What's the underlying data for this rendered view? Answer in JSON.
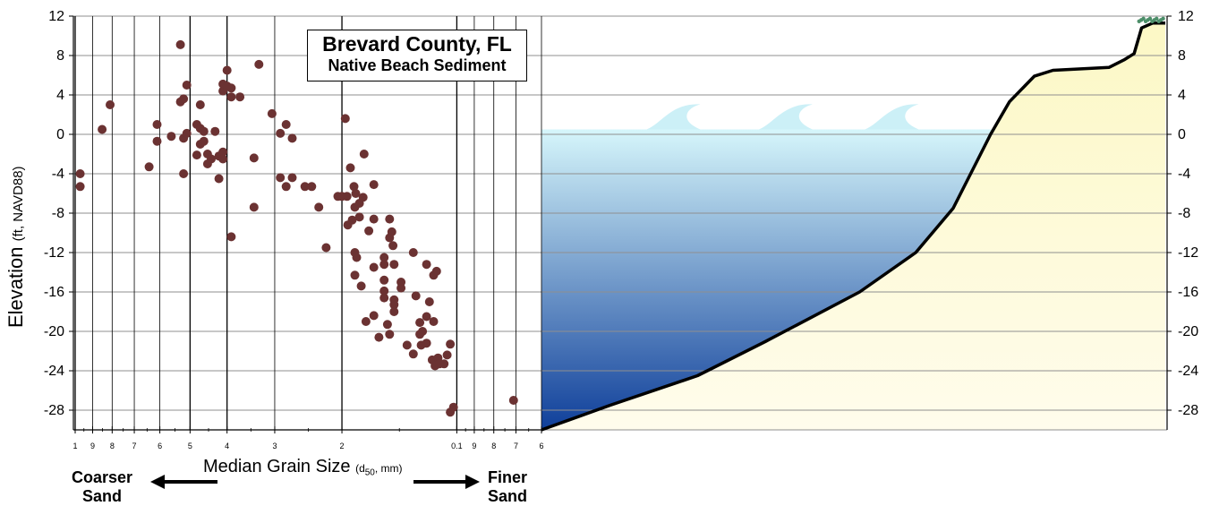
{
  "title": {
    "main": "Brevard County, FL",
    "sub": "Native Beach Sediment"
  },
  "axes": {
    "y_label_main": "Elevation ",
    "y_label_unit": "(ft, NAVD88)",
    "x_label_main": "Median Grain Size ",
    "x_label_unit_pre": "(d",
    "x_label_unit_sub": "50",
    "x_label_unit_post": ", mm)",
    "left_direction": [
      "Coarser",
      "Sand"
    ],
    "right_direction": [
      "Finer",
      "Sand"
    ]
  },
  "chart_data": {
    "type": "scatter",
    "title": "Brevard County, FL",
    "subtitle": "Native Beach Sediment",
    "xlabel": "Median Grain Size (d50, mm)",
    "ylabel": "Elevation (ft, NAVD88)",
    "x_scale": "log, reversed",
    "xlim": [
      1.0,
      0.06
    ],
    "ylim": [
      -30,
      12
    ],
    "y_ticks": [
      12,
      8,
      4,
      0,
      -4,
      -8,
      -12,
      -16,
      -20,
      -24,
      -28
    ],
    "x_ticks": [
      1,
      0.9,
      0.8,
      0.7,
      0.6,
      0.5,
      0.4,
      0.3,
      0.2,
      0.1,
      0.09,
      0.08,
      0.07,
      0.06
    ],
    "x_tick_labels": [
      "1",
      "9",
      "8",
      "7",
      "6",
      "5",
      "4",
      "3",
      "2",
      "0.1",
      "9",
      "8",
      "7",
      "6"
    ],
    "marker_color": "#6b3232",
    "points": [
      {
        "x": 0.97,
        "y": -4.0
      },
      {
        "x": 0.97,
        "y": -5.3
      },
      {
        "x": 0.85,
        "y": 0.5
      },
      {
        "x": 0.81,
        "y": 3.0
      },
      {
        "x": 0.64,
        "y": -3.3
      },
      {
        "x": 0.61,
        "y": 1.0
      },
      {
        "x": 0.61,
        "y": -0.7
      },
      {
        "x": 0.56,
        "y": -0.2
      },
      {
        "x": 0.53,
        "y": 9.1
      },
      {
        "x": 0.53,
        "y": 3.3
      },
      {
        "x": 0.52,
        "y": 3.6
      },
      {
        "x": 0.52,
        "y": -0.4
      },
      {
        "x": 0.52,
        "y": -4.0
      },
      {
        "x": 0.51,
        "y": 5.0
      },
      {
        "x": 0.51,
        "y": 0.1
      },
      {
        "x": 0.48,
        "y": 1.0
      },
      {
        "x": 0.48,
        "y": -2.1
      },
      {
        "x": 0.47,
        "y": 0.6
      },
      {
        "x": 0.47,
        "y": 3.0
      },
      {
        "x": 0.47,
        "y": -1.0
      },
      {
        "x": 0.46,
        "y": -0.7
      },
      {
        "x": 0.46,
        "y": 0.3
      },
      {
        "x": 0.45,
        "y": -2.0
      },
      {
        "x": 0.45,
        "y": -3.0
      },
      {
        "x": 0.44,
        "y": -2.5
      },
      {
        "x": 0.43,
        "y": 0.3
      },
      {
        "x": 0.42,
        "y": -4.5
      },
      {
        "x": 0.42,
        "y": -2.2
      },
      {
        "x": 0.41,
        "y": 4.4
      },
      {
        "x": 0.41,
        "y": 5.1
      },
      {
        "x": 0.41,
        "y": -1.8
      },
      {
        "x": 0.41,
        "y": -2.5
      },
      {
        "x": 0.4,
        "y": 6.5
      },
      {
        "x": 0.4,
        "y": 4.9
      },
      {
        "x": 0.39,
        "y": 4.7
      },
      {
        "x": 0.39,
        "y": 3.8
      },
      {
        "x": 0.39,
        "y": -10.4
      },
      {
        "x": 0.37,
        "y": 3.8
      },
      {
        "x": 0.34,
        "y": -2.4
      },
      {
        "x": 0.34,
        "y": -7.4
      },
      {
        "x": 0.33,
        "y": 7.1
      },
      {
        "x": 0.305,
        "y": 2.1
      },
      {
        "x": 0.29,
        "y": 0.1
      },
      {
        "x": 0.29,
        "y": -4.4
      },
      {
        "x": 0.28,
        "y": 1.0
      },
      {
        "x": 0.28,
        "y": -5.3
      },
      {
        "x": 0.27,
        "y": -0.4
      },
      {
        "x": 0.27,
        "y": -4.4
      },
      {
        "x": 0.25,
        "y": -5.3
      },
      {
        "x": 0.24,
        "y": -5.3
      },
      {
        "x": 0.23,
        "y": -7.4
      },
      {
        "x": 0.22,
        "y": -11.5
      },
      {
        "x": 0.205,
        "y": -6.3
      },
      {
        "x": 0.2,
        "y": -6.3
      },
      {
        "x": 0.196,
        "y": 1.6
      },
      {
        "x": 0.194,
        "y": -6.3
      },
      {
        "x": 0.193,
        "y": -9.2
      },
      {
        "x": 0.19,
        "y": -3.4
      },
      {
        "x": 0.188,
        "y": -8.7
      },
      {
        "x": 0.186,
        "y": -5.3
      },
      {
        "x": 0.185,
        "y": -7.4
      },
      {
        "x": 0.185,
        "y": -12.0
      },
      {
        "x": 0.185,
        "y": -14.3
      },
      {
        "x": 0.184,
        "y": -6.0
      },
      {
        "x": 0.183,
        "y": -12.5
      },
      {
        "x": 0.18,
        "y": -7.0
      },
      {
        "x": 0.18,
        "y": -8.4
      },
      {
        "x": 0.178,
        "y": -15.4
      },
      {
        "x": 0.176,
        "y": -6.4
      },
      {
        "x": 0.175,
        "y": -2.0
      },
      {
        "x": 0.173,
        "y": -19.0
      },
      {
        "x": 0.17,
        "y": -9.8
      },
      {
        "x": 0.165,
        "y": -5.1
      },
      {
        "x": 0.165,
        "y": -13.5
      },
      {
        "x": 0.165,
        "y": -18.4
      },
      {
        "x": 0.165,
        "y": -8.6
      },
      {
        "x": 0.16,
        "y": -20.6
      },
      {
        "x": 0.155,
        "y": -12.5
      },
      {
        "x": 0.155,
        "y": -13.2
      },
      {
        "x": 0.155,
        "y": -14.8
      },
      {
        "x": 0.155,
        "y": -15.9
      },
      {
        "x": 0.155,
        "y": -16.6
      },
      {
        "x": 0.152,
        "y": -19.3
      },
      {
        "x": 0.15,
        "y": -20.3
      },
      {
        "x": 0.15,
        "y": -10.5
      },
      {
        "x": 0.15,
        "y": -8.6
      },
      {
        "x": 0.148,
        "y": -9.9
      },
      {
        "x": 0.147,
        "y": -11.3
      },
      {
        "x": 0.146,
        "y": -13.2
      },
      {
        "x": 0.146,
        "y": -16.8
      },
      {
        "x": 0.146,
        "y": -17.3
      },
      {
        "x": 0.146,
        "y": -18.0
      },
      {
        "x": 0.14,
        "y": -15.0
      },
      {
        "x": 0.14,
        "y": -15.6
      },
      {
        "x": 0.135,
        "y": -21.4
      },
      {
        "x": 0.13,
        "y": -12.0
      },
      {
        "x": 0.13,
        "y": -22.3
      },
      {
        "x": 0.128,
        "y": -16.4
      },
      {
        "x": 0.125,
        "y": -19.1
      },
      {
        "x": 0.125,
        "y": -20.3
      },
      {
        "x": 0.124,
        "y": -21.4
      },
      {
        "x": 0.123,
        "y": -20.0
      },
      {
        "x": 0.12,
        "y": -13.2
      },
      {
        "x": 0.12,
        "y": -18.5
      },
      {
        "x": 0.12,
        "y": -21.2
      },
      {
        "x": 0.118,
        "y": -17.0
      },
      {
        "x": 0.116,
        "y": -22.9
      },
      {
        "x": 0.115,
        "y": -19.0
      },
      {
        "x": 0.115,
        "y": -14.3
      },
      {
        "x": 0.114,
        "y": -23.5
      },
      {
        "x": 0.113,
        "y": -13.9
      },
      {
        "x": 0.112,
        "y": -22.7
      },
      {
        "x": 0.111,
        "y": -23.3
      },
      {
        "x": 0.108,
        "y": -23.3
      },
      {
        "x": 0.106,
        "y": -22.4
      },
      {
        "x": 0.104,
        "y": -28.2
      },
      {
        "x": 0.104,
        "y": -21.3
      },
      {
        "x": 0.102,
        "y": -27.7
      },
      {
        "x": 0.071,
        "y": -27.0
      }
    ],
    "profile": {
      "type": "area",
      "x_units": "relative cross-shore distance (0 offshore to 1 landward)",
      "water_level": 0.5,
      "points": [
        {
          "x": 0.0,
          "y": -30.0
        },
        {
          "x": 0.11,
          "y": -27.5
        },
        {
          "x": 0.25,
          "y": -24.5
        },
        {
          "x": 0.36,
          "y": -21.0
        },
        {
          "x": 0.51,
          "y": -16.0
        },
        {
          "x": 0.6,
          "y": -12.0
        },
        {
          "x": 0.66,
          "y": -7.5
        },
        {
          "x": 0.72,
          "y": 0.0
        },
        {
          "x": 0.75,
          "y": 3.3
        },
        {
          "x": 0.79,
          "y": 5.9
        },
        {
          "x": 0.82,
          "y": 6.5
        },
        {
          "x": 0.91,
          "y": 6.8
        },
        {
          "x": 0.935,
          "y": 7.6
        },
        {
          "x": 0.95,
          "y": 8.2
        },
        {
          "x": 0.962,
          "y": 10.8
        },
        {
          "x": 0.98,
          "y": 11.3
        },
        {
          "x": 1.0,
          "y": 11.3
        }
      ]
    },
    "colors": {
      "water_top": "#d6f6fb",
      "water_bottom": "#0f3f9a",
      "sand_top": "#fcf8c5",
      "sand_bottom": "#fffcec",
      "profile_line": "#000000",
      "vegetation": "#4d8f6a"
    }
  }
}
